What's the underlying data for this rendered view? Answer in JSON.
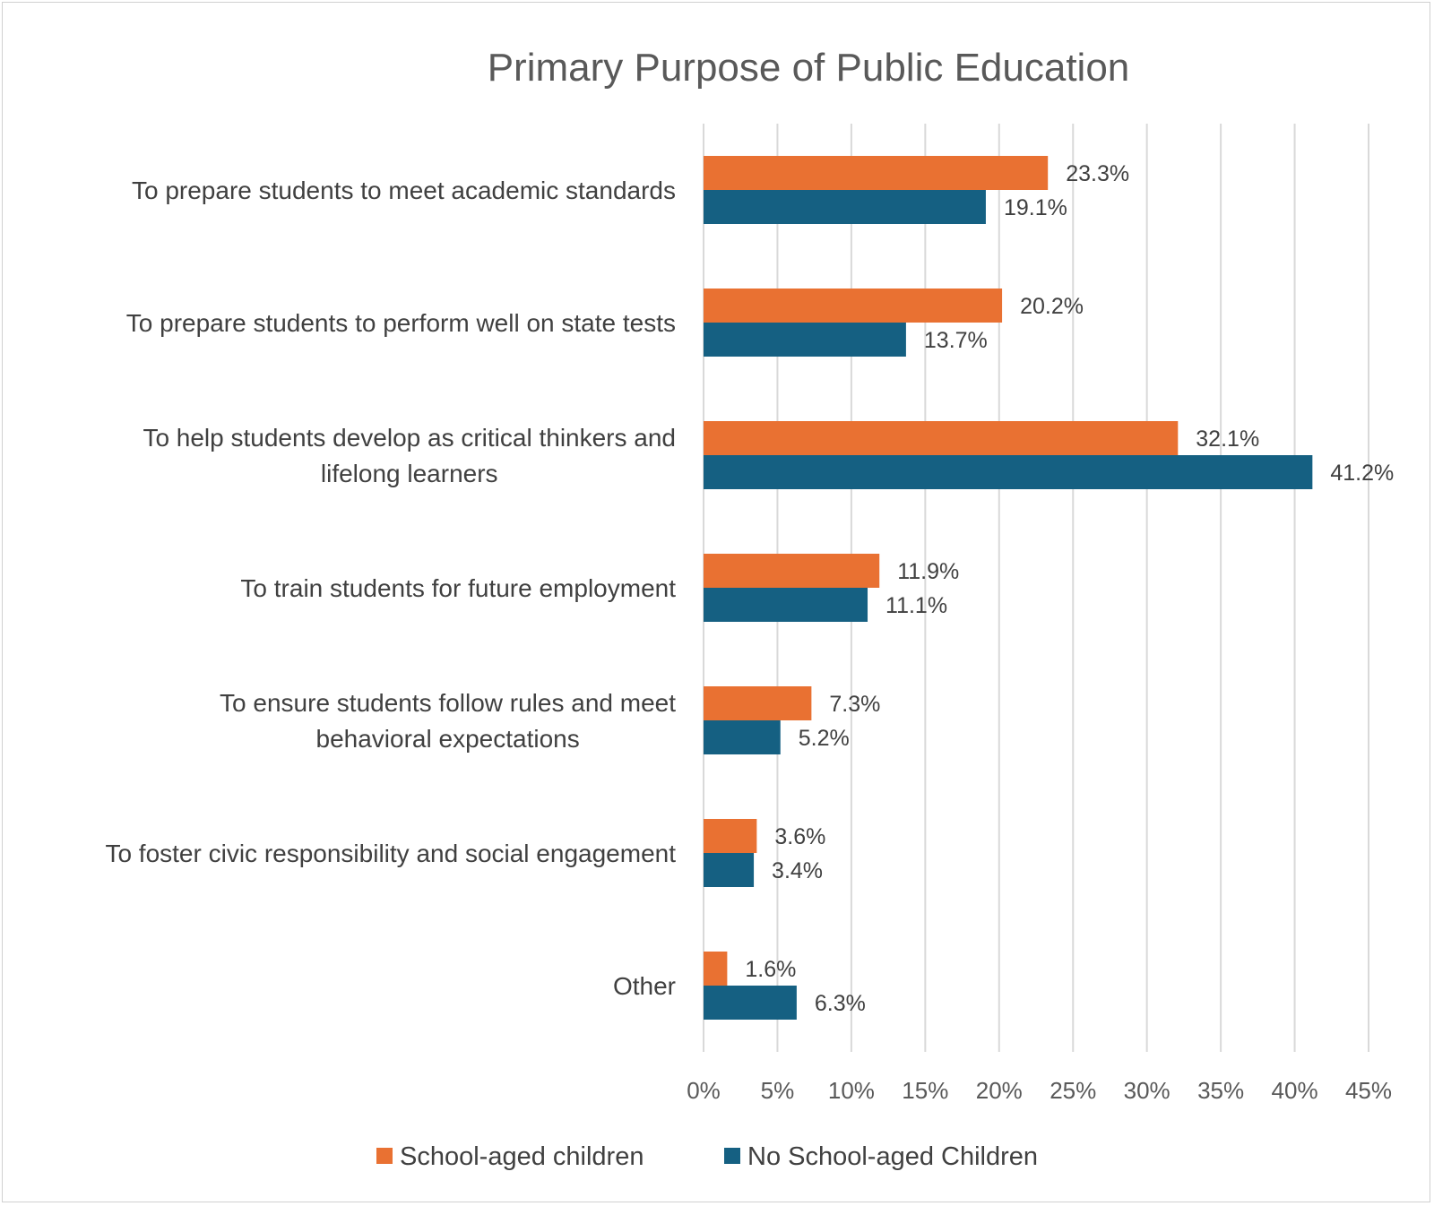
{
  "colors": {
    "school_aged": "#e97132",
    "no_school_aged": "#156082"
  },
  "chart_data": {
    "type": "bar",
    "orientation": "horizontal",
    "title": "Primary Purpose of Public Education",
    "categories": [
      [
        "To prepare students to meet academic standards"
      ],
      [
        "To prepare students to perform well on state tests"
      ],
      [
        "To help students develop as critical thinkers and",
        "lifelong learners"
      ],
      [
        "To train students for future employment"
      ],
      [
        "To ensure students follow rules and meet",
        "behavioral expectations"
      ],
      [
        "To foster civic responsibility and social engagement"
      ],
      [
        "Other"
      ]
    ],
    "series": [
      {
        "name": "School-aged children",
        "values": [
          23.3,
          20.2,
          32.1,
          11.9,
          7.3,
          3.6,
          1.6
        ],
        "labels": [
          "23.3%",
          "20.2%",
          "32.1%",
          "11.9%",
          "7.3%",
          "3.6%",
          "1.6%"
        ]
      },
      {
        "name": "No School-aged Children",
        "values": [
          19.1,
          13.7,
          41.2,
          11.1,
          5.2,
          3.4,
          6.3
        ],
        "labels": [
          "19.1%",
          "13.7%",
          "41.2%",
          "11.1%",
          "5.2%",
          "3.4%",
          "6.3%"
        ]
      }
    ],
    "xlim": [
      0,
      45
    ],
    "xticks": [
      0,
      5,
      10,
      15,
      20,
      25,
      30,
      35,
      40,
      45
    ],
    "xtick_labels": [
      "0%",
      "5%",
      "10%",
      "15%",
      "20%",
      "25%",
      "30%",
      "35%",
      "40%",
      "45%"
    ],
    "grid": true,
    "legend": "bottom"
  }
}
